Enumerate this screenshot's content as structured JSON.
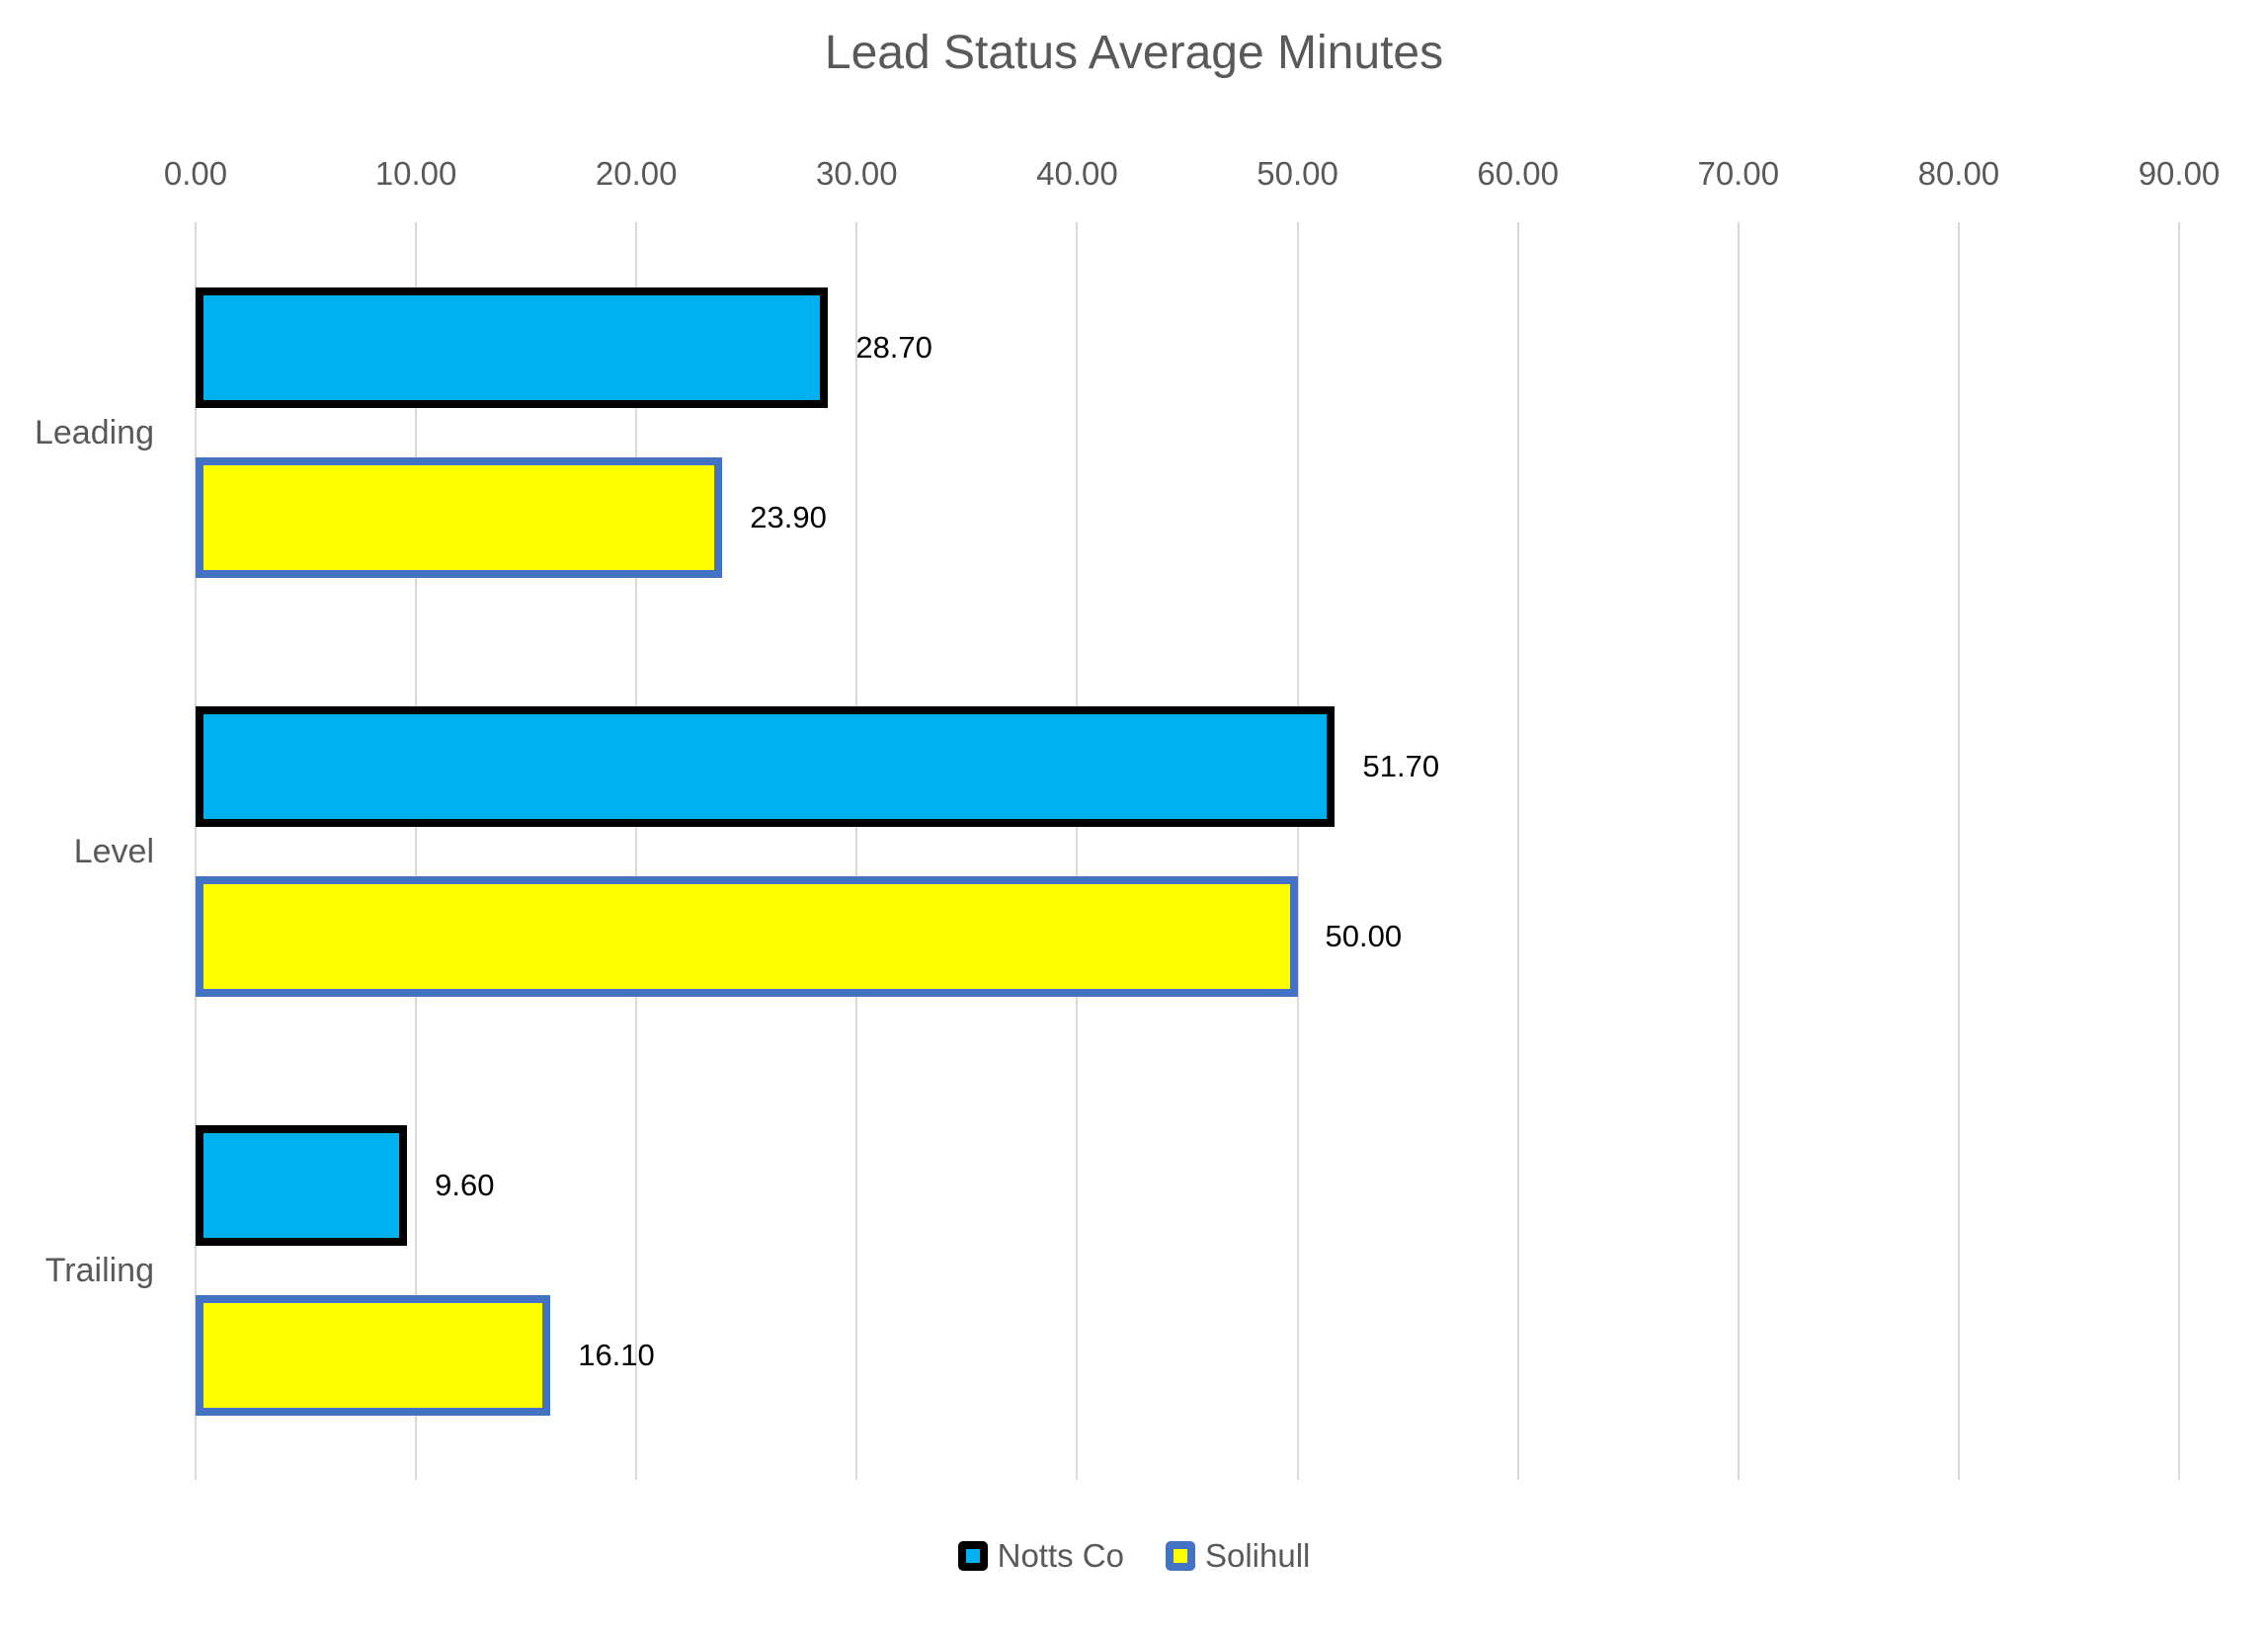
{
  "chart_data": {
    "type": "bar",
    "orientation": "horizontal",
    "title": "Lead Status Average Minutes",
    "categories": [
      "Leading",
      "Level",
      "Trailing"
    ],
    "series": [
      {
        "name": "Notts Co",
        "values": [
          28.7,
          51.7,
          9.6
        ],
        "value_labels": [
          "28.70",
          "51.70",
          "9.60"
        ],
        "fill_color": "#00b0f0",
        "border_color": "#000000"
      },
      {
        "name": "Solihull",
        "values": [
          23.9,
          50.0,
          16.1
        ],
        "value_labels": [
          "23.90",
          "50.00",
          "16.10"
        ],
        "fill_color": "#ffff00",
        "border_color": "#4472c4"
      }
    ],
    "x_axis": {
      "min": 0,
      "max": 90,
      "step": 10,
      "position": "top",
      "tick_labels": [
        "0.00",
        "10.00",
        "20.00",
        "30.00",
        "40.00",
        "50.00",
        "60.00",
        "70.00",
        "80.00",
        "90.00"
      ]
    },
    "grid": true,
    "legend_position": "bottom",
    "colors": {
      "text_gray": "#595959",
      "gridline": "#d9d9d9",
      "data_label": "#000000",
      "background": "#ffffff"
    }
  }
}
